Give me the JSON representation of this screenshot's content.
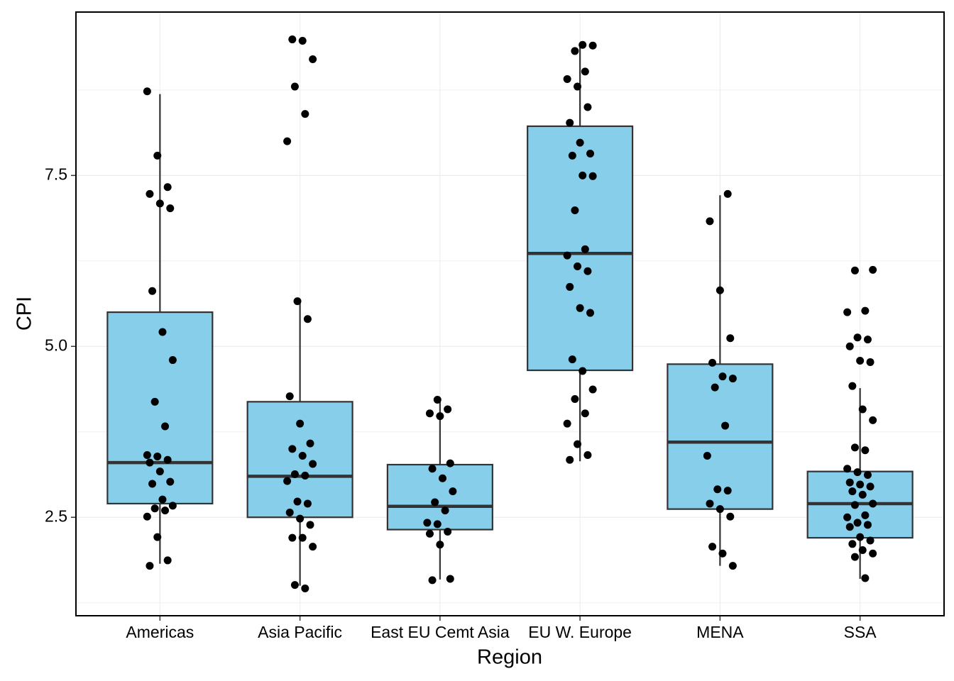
{
  "chart_data": {
    "type": "box",
    "xlabel": "Region",
    "ylabel": "CPI",
    "categories": [
      "Americas",
      "Asia Pacific",
      "East EU Cemt Asia",
      "EU W. Europe",
      "MENA",
      "SSA"
    ],
    "color": "#87ceeb",
    "point_color": "#000000",
    "ylim": [
      1.06,
      9.89
    ],
    "yticks": [
      2.5,
      {
        "value": 5,
        "label": "5.0"
      },
      7.5
    ],
    "minor_yticks": [
      1.25,
      3.75,
      6.25,
      8.75
    ],
    "grid": true,
    "boxes": [
      {
        "min": 1.82,
        "q1": 2.7,
        "median": 3.3,
        "q3": 5.5,
        "max": 8.69
      },
      {
        "min": 1.5,
        "q1": 2.5,
        "median": 3.1,
        "q3": 4.19,
        "max": 5.66
      },
      {
        "min": 1.59,
        "q1": 2.32,
        "median": 2.66,
        "q3": 3.27,
        "max": 4.23
      },
      {
        "min": 3.32,
        "q1": 4.65,
        "median": 6.36,
        "q3": 8.22,
        "max": 9.41
      },
      {
        "min": 1.79,
        "q1": 2.62,
        "median": 3.6,
        "q3": 4.74,
        "max": 7.21
      },
      {
        "min": 1.6,
        "q1": 2.2,
        "median": 2.7,
        "q3": 3.17,
        "max": 4.39
      }
    ],
    "points": [
      [
        8.73,
        7.79,
        7.33,
        7.23,
        7.09,
        7.02,
        5.81,
        5.21,
        4.8,
        4.19,
        3.83,
        3.41,
        3.39,
        3.34,
        3.3,
        3.17,
        3.02,
        2.99,
        2.76,
        2.67,
        2.63,
        2.6,
        2.51,
        2.21,
        1.87,
        1.79
      ],
      [
        9.49,
        9.47,
        9.2,
        8.8,
        8.4,
        8.0,
        5.66,
        5.4,
        4.27,
        3.87,
        3.58,
        3.5,
        3.4,
        3.28,
        3.13,
        3.11,
        3.03,
        2.73,
        2.7,
        2.57,
        2.48,
        2.39,
        2.2,
        2.2,
        2.07,
        1.51,
        1.46
      ],
      [
        4.22,
        4.08,
        4.02,
        3.98,
        3.29,
        3.21,
        3.07,
        2.88,
        2.72,
        2.6,
        2.42,
        2.4,
        2.29,
        2.26,
        2.1,
        1.6,
        1.58
      ],
      [
        9.41,
        9.4,
        9.32,
        9.02,
        8.91,
        8.8,
        8.5,
        8.27,
        7.98,
        7.82,
        7.79,
        7.5,
        7.49,
        6.99,
        6.42,
        6.33,
        6.17,
        6.1,
        5.87,
        5.56,
        5.49,
        4.81,
        4.64,
        4.37,
        4.23,
        4.02,
        3.87,
        3.57,
        3.41,
        3.34
      ],
      [
        7.23,
        6.83,
        5.82,
        5.12,
        4.76,
        4.56,
        4.53,
        4.4,
        3.84,
        3.4,
        2.91,
        2.89,
        2.7,
        2.62,
        2.51,
        2.07,
        1.97,
        1.79
      ],
      [
        6.12,
        6.11,
        5.52,
        5.5,
        5.13,
        5.1,
        5.0,
        4.79,
        4.77,
        4.42,
        4.08,
        3.92,
        3.52,
        3.48,
        3.21,
        3.16,
        3.12,
        3.01,
        2.98,
        2.95,
        2.88,
        2.83,
        2.7,
        2.68,
        2.53,
        2.5,
        2.42,
        2.39,
        2.36,
        2.21,
        2.16,
        2.11,
        2.02,
        1.97,
        1.92,
        1.61
      ]
    ]
  }
}
